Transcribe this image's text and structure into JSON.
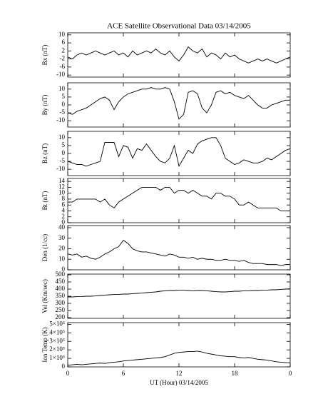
{
  "chart_data": [
    {
      "type": "line",
      "title": "ACE Satellite Observational Data   03/14/2005",
      "y_label": "Bx (nT)",
      "x": [
        0,
        0.5,
        1,
        1.5,
        2,
        2.5,
        3,
        3.5,
        4,
        4.5,
        5,
        5.5,
        6,
        6.5,
        7,
        7.5,
        8,
        8.5,
        9,
        9.5,
        10,
        10.5,
        11,
        11.5,
        12,
        12.5,
        13,
        13.5,
        14,
        14.5,
        15,
        15.5,
        16,
        16.5,
        17,
        17.5,
        18,
        18.5,
        19,
        19.5,
        20,
        20.5,
        21,
        21.5,
        22,
        22.5,
        23,
        23.5,
        24
      ],
      "values": [
        -1,
        -2,
        0,
        1,
        0,
        1,
        2,
        1,
        0,
        1,
        2,
        0,
        1,
        -1,
        2,
        0,
        1,
        2,
        1,
        3,
        1,
        0,
        2,
        -1,
        -3,
        0,
        4,
        2,
        1,
        3,
        -1,
        1,
        0,
        -2,
        1,
        -1,
        0,
        -2,
        -3,
        -4,
        -3,
        -2,
        -3,
        -2,
        -3,
        -4,
        -3,
        -2,
        -1
      ],
      "color": "#000000",
      "xlim": [
        0,
        24
      ],
      "ylim": [
        -11,
        11
      ],
      "yticks": [
        -10,
        -6,
        -2,
        2,
        6,
        10
      ]
    },
    {
      "type": "line",
      "y_label": "By (nT)",
      "x": [
        0,
        0.5,
        1,
        1.5,
        2,
        2.5,
        3,
        3.5,
        4,
        4.5,
        5,
        5.5,
        6,
        6.5,
        7,
        7.5,
        8,
        8.5,
        9,
        9.5,
        10,
        10.5,
        11,
        11.5,
        12,
        12.5,
        13,
        13.5,
        14,
        14.5,
        15,
        15.5,
        16,
        16.5,
        17,
        17.5,
        18,
        18.5,
        19,
        19.5,
        20,
        20.5,
        21,
        21.5,
        22,
        22.5,
        23,
        23.5,
        24
      ],
      "values": [
        -5,
        -6,
        -4,
        -3,
        -2,
        0,
        2,
        4,
        5,
        3,
        -3,
        2,
        5,
        7,
        8,
        9,
        10,
        10,
        11,
        10,
        10,
        11,
        10,
        2,
        -9,
        -6,
        8,
        9,
        7,
        -2,
        -5,
        0,
        8,
        9,
        7,
        8,
        6,
        5,
        4,
        6,
        3,
        0,
        -2,
        -2,
        0,
        1,
        2,
        3,
        3
      ],
      "color": "#000000",
      "xlim": [
        0,
        24
      ],
      "ylim": [
        -14,
        14
      ],
      "yticks": [
        -10,
        -5,
        0,
        5,
        10
      ]
    },
    {
      "type": "line",
      "y_label": "Bz (nT)",
      "x": [
        0,
        0.5,
        1,
        1.5,
        2,
        2.5,
        3,
        3.5,
        4,
        4.5,
        5,
        5.5,
        6,
        6.5,
        7,
        7.5,
        8,
        8.5,
        9,
        9.5,
        10,
        10.5,
        11,
        11.5,
        12,
        12.5,
        13,
        13.5,
        14,
        14.5,
        15,
        15.5,
        16,
        16.5,
        17,
        17.5,
        18,
        18.5,
        19,
        19.5,
        20,
        20.5,
        21,
        21.5,
        22,
        22.5,
        23,
        23.5,
        24
      ],
      "values": [
        -5,
        -6,
        -7,
        -7,
        -8,
        -7,
        -6,
        -5,
        7,
        7,
        7,
        -2,
        5,
        4,
        -3,
        3,
        2,
        6,
        2,
        -2,
        -5,
        -6,
        -3,
        5,
        -8,
        -3,
        2,
        0,
        6,
        8,
        9,
        10,
        10,
        5,
        -3,
        -5,
        -7,
        -6,
        -4,
        -5,
        -6,
        -6,
        -5,
        -3,
        -4,
        -2,
        0,
        2,
        3
      ],
      "color": "#000000",
      "xlim": [
        0,
        24
      ],
      "ylim": [
        -14,
        14
      ],
      "yticks": [
        -10,
        -5,
        0,
        5,
        10
      ]
    },
    {
      "type": "line",
      "y_label": "Bt (nT)",
      "x": [
        0,
        0.5,
        1,
        1.5,
        2,
        2.5,
        3,
        3.5,
        4,
        4.5,
        5,
        5.5,
        6,
        6.5,
        7,
        7.5,
        8,
        8.5,
        9,
        9.5,
        10,
        10.5,
        11,
        11.5,
        12,
        12.5,
        13,
        13.5,
        14,
        14.5,
        15,
        15.5,
        16,
        16.5,
        17,
        17.5,
        18,
        18.5,
        19,
        19.5,
        20,
        20.5,
        21,
        21.5,
        22,
        22.5,
        23,
        23.5,
        24
      ],
      "values": [
        7,
        7,
        8,
        8,
        8,
        8,
        8,
        7,
        8,
        6,
        5,
        7,
        8,
        9,
        10,
        11,
        12,
        12,
        12,
        12,
        11,
        12,
        12,
        10,
        11,
        11,
        10,
        11,
        10,
        9,
        9,
        8,
        10,
        10,
        9,
        9,
        8,
        6,
        6,
        7,
        6,
        5,
        5,
        5,
        5,
        5,
        4,
        4,
        4
      ],
      "color": "#000000",
      "xlim": [
        0,
        24
      ],
      "ylim": [
        0,
        15
      ],
      "yticks": [
        0,
        2,
        4,
        6,
        8,
        10,
        12,
        14
      ]
    },
    {
      "type": "line",
      "y_label": "Den (1/cc)",
      "x": [
        0,
        0.5,
        1,
        1.5,
        2,
        2.5,
        3,
        3.5,
        4,
        4.5,
        5,
        5.5,
        6,
        6.5,
        7,
        7.5,
        8,
        8.5,
        9,
        9.5,
        10,
        10.5,
        11,
        11.5,
        12,
        12.5,
        13,
        13.5,
        14,
        14.5,
        15,
        15.5,
        16,
        16.5,
        17,
        17.5,
        18,
        18.5,
        19,
        19.5,
        20,
        20.5,
        21,
        21.5,
        22,
        22.5,
        23,
        23.5,
        24
      ],
      "values": [
        15,
        14,
        15,
        12,
        13,
        11,
        10,
        12,
        15,
        17,
        20,
        22,
        28,
        25,
        20,
        18,
        17,
        17,
        16,
        15,
        14,
        13,
        15,
        14,
        12,
        12,
        11,
        12,
        10,
        11,
        10,
        10,
        9,
        9,
        10,
        9,
        9,
        8,
        9,
        7,
        6,
        6,
        6,
        5,
        5,
        5,
        4,
        5,
        5
      ],
      "color": "#000000",
      "xlim": [
        0,
        24
      ],
      "ylim": [
        0,
        42
      ],
      "yticks": [
        0,
        10,
        20,
        30,
        40
      ]
    },
    {
      "type": "line",
      "y_label": "Vel (Km/sec)",
      "x": [
        0,
        0.5,
        1,
        1.5,
        2,
        2.5,
        3,
        3.5,
        4,
        4.5,
        5,
        5.5,
        6,
        6.5,
        7,
        7.5,
        8,
        8.5,
        9,
        9.5,
        10,
        10.5,
        11,
        11.5,
        12,
        12.5,
        13,
        13.5,
        14,
        14.5,
        15,
        15.5,
        16,
        16.5,
        17,
        17.5,
        18,
        18.5,
        19,
        19.5,
        20,
        20.5,
        21,
        21.5,
        22,
        22.5,
        23,
        23.5,
        24
      ],
      "values": [
        345,
        345,
        347,
        348,
        350,
        350,
        352,
        355,
        358,
        360,
        362,
        363,
        365,
        365,
        368,
        370,
        372,
        375,
        378,
        380,
        385,
        388,
        390,
        390,
        392,
        392,
        390,
        388,
        390,
        390,
        388,
        385,
        382,
        380,
        380,
        382,
        385,
        385,
        388,
        388,
        390,
        390,
        392,
        393,
        395,
        395,
        398,
        400,
        402
      ],
      "color": "#000000",
      "xlim": [
        0,
        24
      ],
      "ylim": [
        195,
        505
      ],
      "yticks": [
        200,
        250,
        300,
        350,
        400,
        450,
        500
      ]
    },
    {
      "type": "line",
      "y_label": "Ion Temp (K)",
      "x_label": "UT (Hour)  03/14/2005",
      "x": [
        0,
        0.5,
        1,
        1.5,
        2,
        2.5,
        3,
        3.5,
        4,
        4.5,
        5,
        5.5,
        6,
        6.5,
        7,
        7.5,
        8,
        8.5,
        9,
        9.5,
        10,
        10.5,
        11,
        11.5,
        12,
        12.5,
        13,
        13.5,
        14,
        14.5,
        15,
        15.5,
        16,
        16.5,
        17,
        17.5,
        18,
        18.5,
        19,
        19.5,
        20,
        20.5,
        21,
        21.5,
        22,
        22.5,
        23,
        23.5,
        24
      ],
      "values": [
        20000,
        25000,
        30000,
        25000,
        30000,
        35000,
        40000,
        45000,
        40000,
        50000,
        55000,
        60000,
        70000,
        75000,
        80000,
        85000,
        90000,
        95000,
        100000,
        105000,
        110000,
        120000,
        140000,
        160000,
        170000,
        175000,
        180000,
        180000,
        185000,
        175000,
        160000,
        150000,
        140000,
        130000,
        125000,
        120000,
        120000,
        110000,
        105000,
        110000,
        100000,
        90000,
        85000,
        80000,
        70000,
        60000,
        55000,
        50000,
        50000
      ],
      "color": "#000000",
      "xlim": [
        0,
        24
      ],
      "ylim": [
        0,
        520000
      ],
      "yticks": [
        0,
        {
          "value": 100000,
          "label": "1×10⁵"
        },
        {
          "value": 200000,
          "label": "2×10⁵"
        },
        {
          "value": 300000,
          "label": "3×10⁵"
        },
        {
          "value": 400000,
          "label": "4×10⁵"
        },
        {
          "value": 500000,
          "label": "5×10⁵"
        }
      ],
      "xticks": [
        0,
        6,
        12,
        18,
        {
          "value": 24,
          "label": "0"
        }
      ]
    }
  ]
}
